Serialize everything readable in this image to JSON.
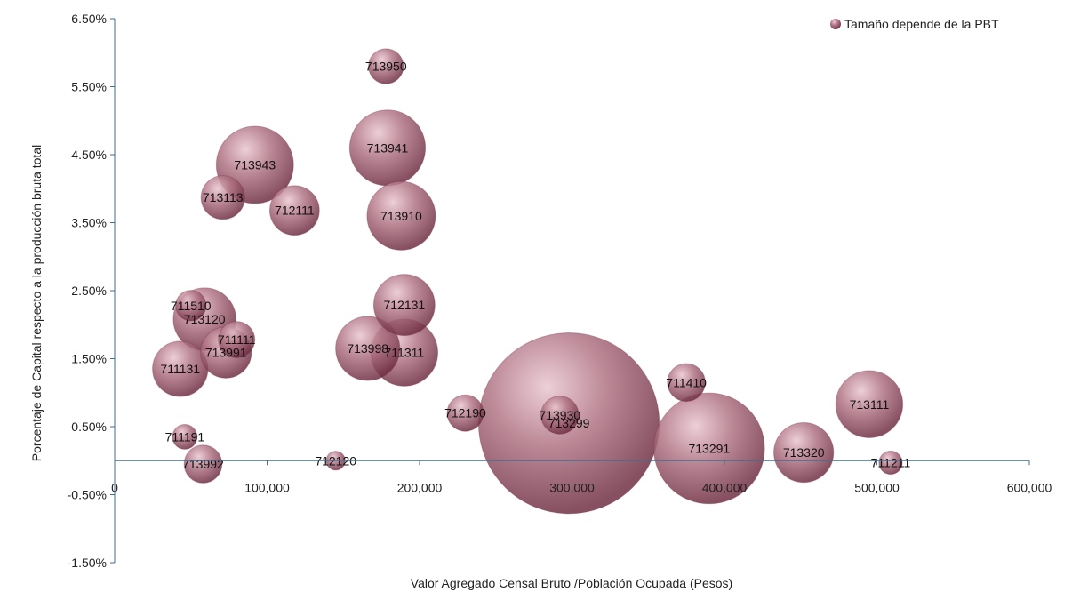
{
  "chart_data": {
    "type": "bubble",
    "xlabel": "Valor Agregado Censal Bruto /Población Ocupada (Pesos)",
    "ylabel": "Porcentaje de Capital respecto a la producción bruta total",
    "xlim": [
      0,
      600000
    ],
    "ylim": [
      -1.5,
      6.5
    ],
    "x_ticks": [
      "0",
      "100,000",
      "200,000",
      "300,000",
      "400,000",
      "500,000",
      "600,000"
    ],
    "y_ticks": [
      "6.50%",
      "5.50%",
      "4.50%",
      "3.50%",
      "2.50%",
      "1.50%",
      "0.50%",
      "-0.50%",
      "-1.50%"
    ],
    "legend": {
      "label": "Tamaño depende de la PBT",
      "placement": "top-right"
    },
    "colors": {
      "bubble": "#a8677a",
      "bubble_dark": "#6e2d42",
      "axis": "#3f6e8e"
    },
    "size_note": "size = relative PBT weight",
    "points": [
      {
        "label": "713950",
        "x": 178000,
        "y": 5.8,
        "size": 2.4
      },
      {
        "label": "713941",
        "x": 179000,
        "y": 4.6,
        "size": 5.2
      },
      {
        "label": "713943",
        "x": 92000,
        "y": 4.35,
        "size": 5.3
      },
      {
        "label": "713113",
        "x": 71000,
        "y": 3.87,
        "size": 3.0
      },
      {
        "label": "712111",
        "x": 118000,
        "y": 3.68,
        "size": 3.4
      },
      {
        "label": "713910",
        "x": 188000,
        "y": 3.6,
        "size": 4.7
      },
      {
        "label": "712131",
        "x": 190000,
        "y": 2.29,
        "size": 4.2
      },
      {
        "label": "711510",
        "x": 50000,
        "y": 2.28,
        "size": 2.1
      },
      {
        "label": "713120",
        "x": 59000,
        "y": 2.08,
        "size": 4.3
      },
      {
        "label": "711111",
        "x": 80000,
        "y": 1.78,
        "size": 2.5
      },
      {
        "label": "713991",
        "x": 73000,
        "y": 1.59,
        "size": 3.5
      },
      {
        "label": "713998",
        "x": 166000,
        "y": 1.65,
        "size": 4.4
      },
      {
        "label": "711311",
        "x": 190000,
        "y": 1.59,
        "size": 4.6
      },
      {
        "label": "711131",
        "x": 43000,
        "y": 1.35,
        "size": 3.8
      },
      {
        "label": "711410",
        "x": 375000,
        "y": 1.15,
        "size": 2.6
      },
      {
        "label": "713111",
        "x": 495000,
        "y": 0.83,
        "size": 4.6
      },
      {
        "label": "712190",
        "x": 230000,
        "y": 0.7,
        "size": 2.5
      },
      {
        "label": "713930",
        "x": 292000,
        "y": 0.67,
        "size": 2.6
      },
      {
        "label": "713299",
        "x": 298000,
        "y": 0.55,
        "size": 12.4
      },
      {
        "label": "711191",
        "x": 46000,
        "y": 0.35,
        "size": 1.7
      },
      {
        "label": "713291",
        "x": 390000,
        "y": 0.18,
        "size": 7.6
      },
      {
        "label": "713320",
        "x": 452000,
        "y": 0.12,
        "size": 4.1
      },
      {
        "label": "711211",
        "x": 509000,
        "y": -0.03,
        "size": 1.6
      },
      {
        "label": "713992",
        "x": 58000,
        "y": -0.05,
        "size": 2.6
      },
      {
        "label": "712120",
        "x": 145000,
        "y": 0.0,
        "size": 1.3
      }
    ]
  }
}
